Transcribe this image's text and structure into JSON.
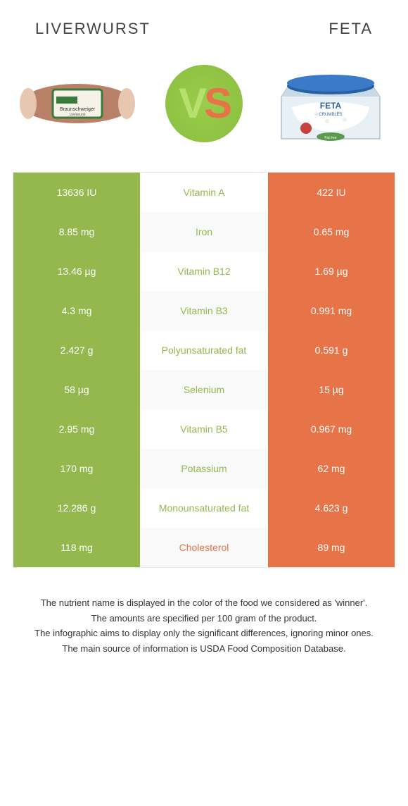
{
  "header": {
    "left": "LIVERWURST",
    "right": "FETA"
  },
  "vs": {
    "v": "V",
    "s": "S"
  },
  "colors": {
    "green": "#94b84d",
    "orange": "#e77448",
    "green_light": "#9acd4b"
  },
  "rows": [
    {
      "left": "13636 IU",
      "mid": "Vitamin A",
      "right": "422 IU",
      "winner": "left"
    },
    {
      "left": "8.85 mg",
      "mid": "Iron",
      "right": "0.65 mg",
      "winner": "left"
    },
    {
      "left": "13.46 µg",
      "mid": "Vitamin B12",
      "right": "1.69 µg",
      "winner": "left"
    },
    {
      "left": "4.3 mg",
      "mid": "Vitamin B3",
      "right": "0.991 mg",
      "winner": "left"
    },
    {
      "left": "2.427 g",
      "mid": "Polyunsaturated fat",
      "right": "0.591 g",
      "winner": "left"
    },
    {
      "left": "58 µg",
      "mid": "Selenium",
      "right": "15 µg",
      "winner": "left"
    },
    {
      "left": "2.95 mg",
      "mid": "Vitamin B5",
      "right": "0.967 mg",
      "winner": "left"
    },
    {
      "left": "170 mg",
      "mid": "Potassium",
      "right": "62 mg",
      "winner": "left"
    },
    {
      "left": "12.286 g",
      "mid": "Monounsaturated fat",
      "right": "4.623 g",
      "winner": "left"
    },
    {
      "left": "118 mg",
      "mid": "Cholesterol",
      "right": "89 mg",
      "winner": "right"
    }
  ],
  "footer": {
    "l1": "The nutrient name is displayed in the color of the food we considered as 'winner'.",
    "l2": "The amounts are specified per 100 gram of the product.",
    "l3": "The infographic aims to display only the significant differences, ignoring minor ones.",
    "l4": "The main source of information is USDA Food Composition Database."
  }
}
